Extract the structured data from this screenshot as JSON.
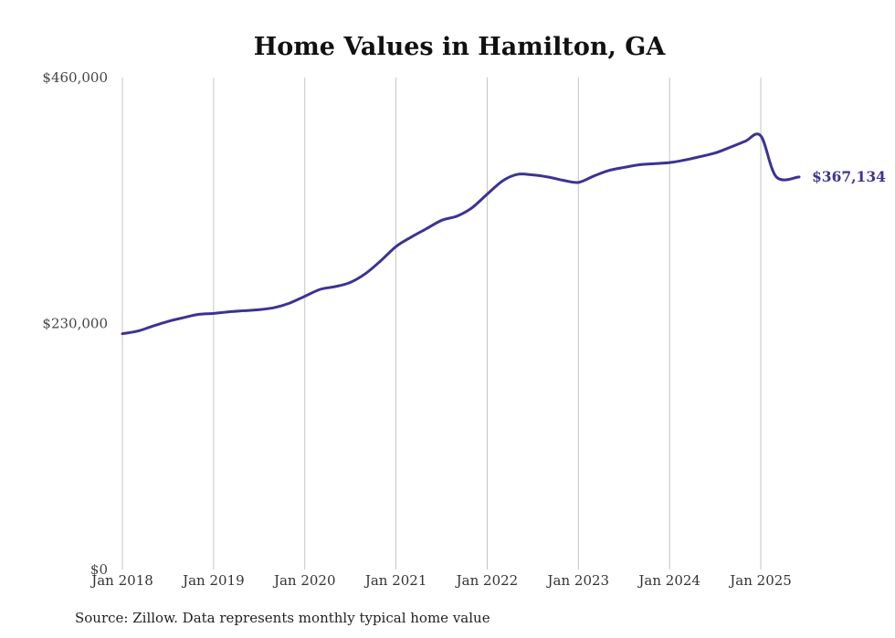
{
  "chart_data": {
    "type": "line",
    "title": "Home Values in Hamilton, GA",
    "xlabel": "",
    "ylabel": "",
    "ylim": [
      0,
      460000
    ],
    "yticks": [
      {
        "value": 0,
        "label": "$0"
      },
      {
        "value": 230000,
        "label": "$230,000"
      },
      {
        "value": 460000,
        "label": "$460,000"
      }
    ],
    "xticks": [
      {
        "value": 2018.0,
        "label": "Jan 2018"
      },
      {
        "value": 2019.0,
        "label": "Jan 2019"
      },
      {
        "value": 2020.0,
        "label": "Jan 2020"
      },
      {
        "value": 2021.0,
        "label": "Jan 2021"
      },
      {
        "value": 2022.0,
        "label": "Jan 2022"
      },
      {
        "value": 2023.0,
        "label": "Jan 2023"
      },
      {
        "value": 2024.0,
        "label": "Jan 2024"
      },
      {
        "value": 2025.0,
        "label": "Jan 2025"
      }
    ],
    "xlim": [
      2018.0,
      2025.42
    ],
    "grid": "vertical",
    "line_color": "#3b3393",
    "series": [
      {
        "x": [
          2018.0,
          2018.17,
          2018.33,
          2018.5,
          2018.67,
          2018.83,
          2019.0,
          2019.17,
          2019.33,
          2019.5,
          2019.67,
          2019.83,
          2020.0,
          2020.17,
          2020.33,
          2020.5,
          2020.67,
          2020.83,
          2021.0,
          2021.17,
          2021.33,
          2021.5,
          2021.67,
          2021.83,
          2022.0,
          2022.17,
          2022.33,
          2022.5,
          2022.67,
          2022.83,
          2023.0,
          2023.17,
          2023.33,
          2023.5,
          2023.67,
          2023.83,
          2024.0,
          2024.17,
          2024.33,
          2024.5,
          2024.67,
          2024.83,
          2025.0,
          2025.17,
          2025.42
        ],
        "values": [
          220500,
          223000,
          227500,
          232000,
          235500,
          238500,
          239500,
          241000,
          242000,
          243000,
          245000,
          249000,
          255500,
          262000,
          264500,
          268500,
          277000,
          288500,
          302000,
          311000,
          318500,
          326500,
          330500,
          338000,
          351000,
          363500,
          369500,
          369000,
          367000,
          364000,
          362000,
          368000,
          373000,
          376000,
          378500,
          379500,
          380500,
          383000,
          386000,
          389500,
          395000,
          400500,
          405500,
          367134,
          367134
        ],
        "end_label": "$367,134"
      }
    ]
  },
  "footer": {
    "source": "Source: Zillow. Data represents monthly typical home value"
  }
}
